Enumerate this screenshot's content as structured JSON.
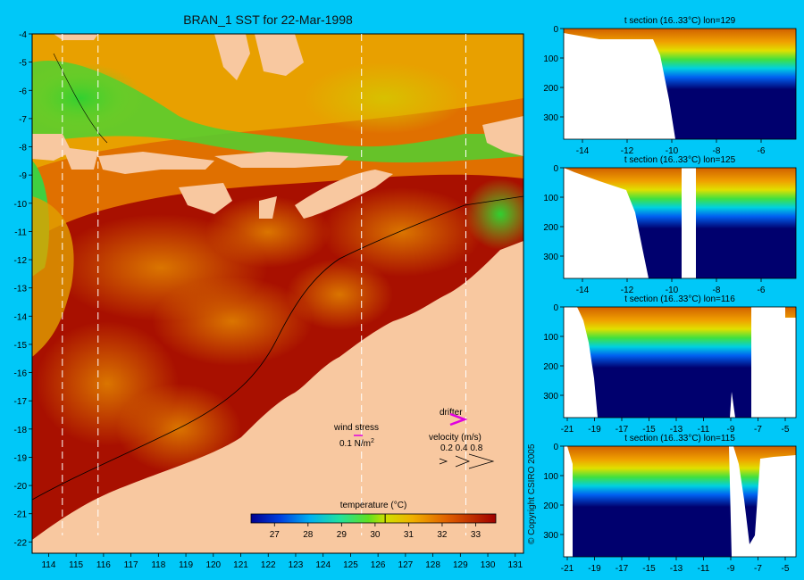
{
  "main_map": {
    "title": "BRAN_1 SST for 22-Mar-1998",
    "x_ticks": [
      "114",
      "115",
      "116",
      "117",
      "118",
      "119",
      "120",
      "121",
      "122",
      "123",
      "124",
      "125",
      "126",
      "127",
      "128",
      "129",
      "130",
      "131"
    ],
    "y_ticks": [
      "-4",
      "-5",
      "-6",
      "-7",
      "-8",
      "-9",
      "-10",
      "-11",
      "-12",
      "-13",
      "-14",
      "-15",
      "-16",
      "-17",
      "-18",
      "-19",
      "-20",
      "-21",
      "-22"
    ],
    "section_lines_lon": [
      114.5,
      115.8,
      125.4,
      129.2
    ],
    "legend": {
      "wind_label": "wind stress",
      "wind_value": "0.1 N/m",
      "wind_exp": "2",
      "drifter_label": "drifter",
      "velocity_label": "velocity (m/s)",
      "velocity_values": "0.2 0.4 0.8"
    },
    "colorbar": {
      "title": "temperature (°C)",
      "ticks": [
        "27",
        "28",
        "29",
        "30",
        "31",
        "32",
        "33"
      ],
      "range": [
        26.3,
        33.6
      ],
      "marker": 30.3
    },
    "colors": {
      "background": "#00c8f8",
      "land": "#f8c8a0",
      "hot": "#a00000",
      "warm": "#e68000",
      "cool": "#30d030",
      "deep": "#00006e"
    }
  },
  "sections": [
    {
      "title": "t section (16..33°C) lon=129",
      "x_ticks": [
        "-14",
        "-12",
        "-10",
        "-8",
        "-6"
      ],
      "y_ticks": [
        "0",
        "100",
        "200",
        "300"
      ]
    },
    {
      "title": "t section (16..33°C) lon=125",
      "x_ticks": [
        "-14",
        "-12",
        "-10",
        "-8",
        "-6"
      ],
      "y_ticks": [
        "0",
        "100",
        "200",
        "300"
      ]
    },
    {
      "title": "t section (16..33°C) lon=116",
      "x_ticks": [
        "-21",
        "-19",
        "-17",
        "-15",
        "-13",
        "-11",
        "-9",
        "-7",
        "-5"
      ],
      "y_ticks": [
        "0",
        "100",
        "200",
        "300"
      ]
    },
    {
      "title": "t section (16..33°C) lon=115",
      "x_ticks": [
        "-21",
        "-19",
        "-17",
        "-15",
        "-13",
        "-11",
        "-9",
        "-7",
        "-5"
      ],
      "y_ticks": [
        "0",
        "100",
        "200",
        "300"
      ]
    }
  ],
  "copyright": "© Copyright CSIRO 2005"
}
